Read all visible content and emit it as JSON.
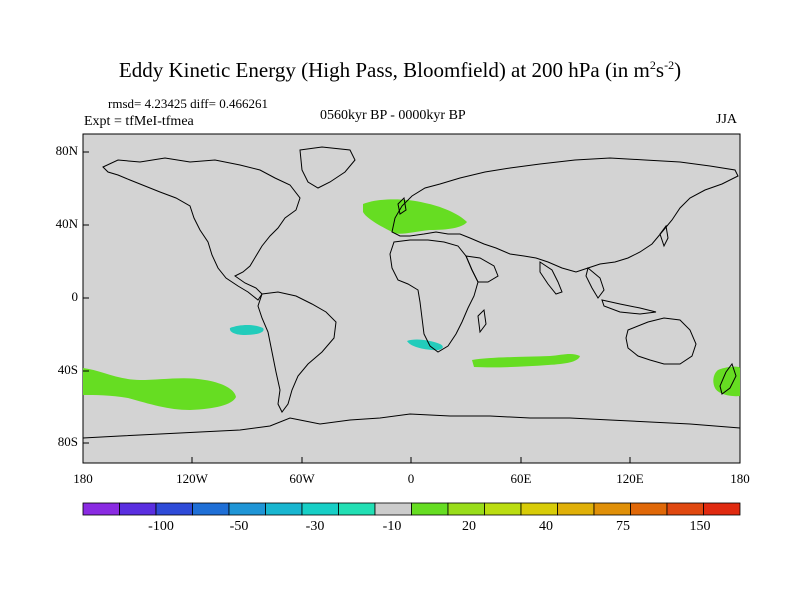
{
  "title": "Eddy Kinetic Energy (High Pass, Bloomfield) at 200 hPa (in m",
  "title_unit_sup1": "2",
  "title_unit_s": "s",
  "title_unit_sup2": "-2",
  "title_close": ")",
  "stats": "rmsd= 4.23425 diff= 0.466261",
  "experiment": "Expt = tfMeI-tfmea",
  "period": "0560kyr BP - 0000kyr BP",
  "season": "JJA",
  "colors": {
    "ocean_land_background": "#d3d3d3",
    "positive_20": "#66dd22",
    "negative_10": "#22ccbb"
  },
  "axes": {
    "y_ticks": [
      "80N",
      "40N",
      "0",
      "40S",
      "80S"
    ],
    "x_ticks": [
      "180",
      "120W",
      "60W",
      "0",
      "60E",
      "120E",
      "180"
    ]
  },
  "colorbar": {
    "colors": [
      "#8a2be2",
      "#5a2ee0",
      "#2e4bd8",
      "#1f6fd6",
      "#1f95d6",
      "#19b6d0",
      "#17cfc6",
      "#22dfb4",
      "#cccccc",
      "#66dd22",
      "#99dd1a",
      "#bbdd11",
      "#d8cc08",
      "#e0b008",
      "#e09008",
      "#e06808",
      "#e04810",
      "#e02a10"
    ],
    "labels": [
      "-100",
      "-50",
      "-30",
      "-10",
      "20",
      "40",
      "75",
      "150"
    ]
  },
  "anomalies": [
    {
      "name": "europe",
      "value_class": "20"
    },
    {
      "name": "south-indian-ocean",
      "value_class": "20"
    },
    {
      "name": "south-pacific",
      "value_class": "20"
    },
    {
      "name": "new-zealand",
      "value_class": "20"
    },
    {
      "name": "southeast-pacific",
      "value_class": "-10"
    },
    {
      "name": "south-atlantic",
      "value_class": "-10"
    }
  ]
}
